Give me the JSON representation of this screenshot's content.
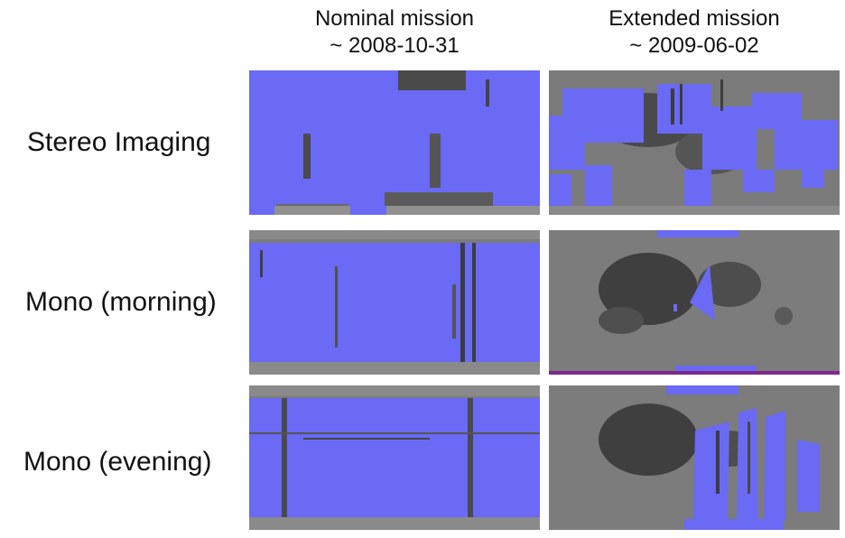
{
  "columns": [
    {
      "title": "Nominal mission",
      "date": "~ 2008-10-31"
    },
    {
      "title": "Extended mission",
      "date": "~ 2009-06-02"
    }
  ],
  "rows": [
    {
      "label": "Stereo Imaging"
    },
    {
      "label": "Mono (morning)"
    },
    {
      "label": "Mono (evening)"
    }
  ],
  "colors": {
    "coverage": "#6a6af5",
    "moon_surface": "#6f6f6f",
    "moon_dark": "#3d3d3d",
    "background": "#ffffff"
  }
}
